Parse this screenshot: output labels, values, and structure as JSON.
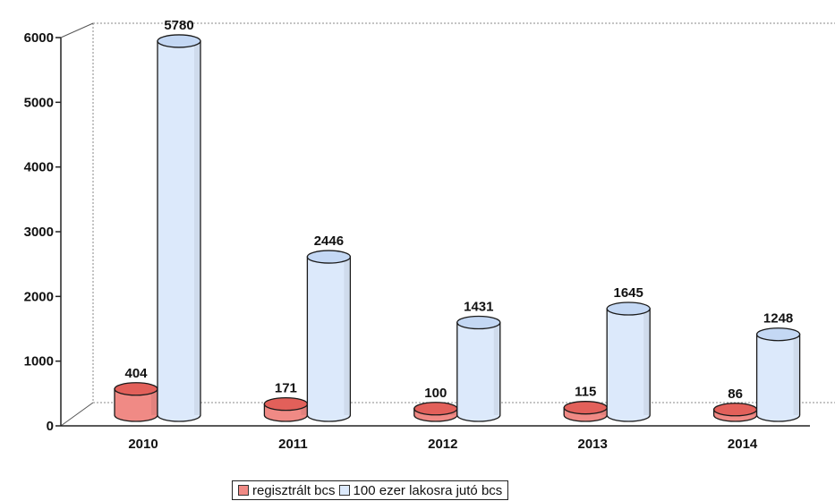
{
  "chart_data": {
    "type": "bar",
    "categories": [
      "2010",
      "2011",
      "2012",
      "2013",
      "2014"
    ],
    "series": [
      {
        "name": "regisztrált bcs",
        "values": [
          404,
          171,
          100,
          115,
          86
        ]
      },
      {
        "name": "100 ezer lakosra jutó bcs",
        "values": [
          5780,
          2446,
          1431,
          1645,
          1248
        ]
      }
    ],
    "y_ticks": [
      "0",
      "1000",
      "2000",
      "3000",
      "4000",
      "5000",
      "6000"
    ],
    "ylim": [
      0,
      6000
    ],
    "title": "",
    "xlabel": "",
    "ylabel": "",
    "grid": false,
    "legend_position": "bottom",
    "style": "3d-cylinder"
  },
  "colors": {
    "series_0_fill": "#f08a85",
    "series_0_top": "#e2605a",
    "series_1_fill": "#dce9fb",
    "series_1_top": "#c4d8f4",
    "outline": "#1a1a1a"
  }
}
